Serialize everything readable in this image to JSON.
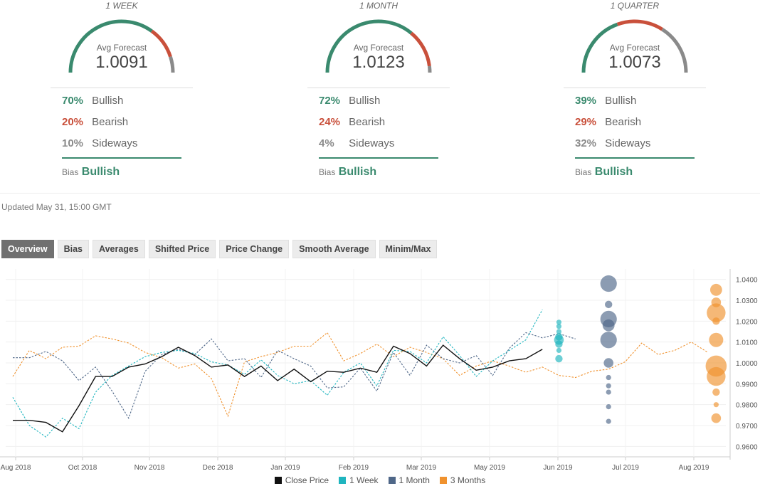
{
  "forecasts": [
    {
      "period": "1 WEEK",
      "avg_label": "Avg Forecast",
      "avg": "1.0091",
      "bullish_pct": "70%",
      "bullish_label": "Bullish",
      "bearish_pct": "20%",
      "bearish_label": "Bearish",
      "sideways_pct": "10%",
      "sideways_label": "Sideways",
      "bias_label": "Bias",
      "bias": "Bullish",
      "bull": 70,
      "bear": 20,
      "side": 10
    },
    {
      "period": "1 MONTH",
      "avg_label": "Avg Forecast",
      "avg": "1.0123",
      "bullish_pct": "72%",
      "bullish_label": "Bullish",
      "bearish_pct": "24%",
      "bearish_label": "Bearish",
      "sideways_pct": "4%",
      "sideways_label": "Sideways",
      "bias_label": "Bias",
      "bias": "Bullish",
      "bull": 72,
      "bear": 24,
      "side": 4
    },
    {
      "period": "1 QUARTER",
      "avg_label": "Avg Forecast",
      "avg": "1.0073",
      "bullish_pct": "39%",
      "bullish_label": "Bullish",
      "bearish_pct": "29%",
      "bearish_label": "Bearish",
      "sideways_pct": "32%",
      "sideways_label": "Sideways",
      "bias_label": "Bias",
      "bias": "Bullish",
      "bull": 39,
      "bear": 29,
      "side": 32
    }
  ],
  "updated": "Updated May 31, 15:00 GMT",
  "tabs": [
    {
      "label": "Overview",
      "active": true
    },
    {
      "label": "Bias",
      "active": false
    },
    {
      "label": "Averages",
      "active": false
    },
    {
      "label": "Shifted Price",
      "active": false
    },
    {
      "label": "Price Change",
      "active": false
    },
    {
      "label": "Smooth Average",
      "active": false
    },
    {
      "label": "Minim/Max",
      "active": false
    }
  ],
  "colors": {
    "bullish": "#3a8a6e",
    "bearish": "#c9503b",
    "sideways": "#8a8a8a",
    "close": "#111111",
    "week": "#1fb5bf",
    "month": "#4f6788",
    "quarter": "#f0922e"
  },
  "chart_data": {
    "type": "line",
    "x_ticks": [
      "Aug 2018",
      "Oct 2018",
      "Nov 2018",
      "Dec 2018",
      "Jan 2019",
      "Feb 2019",
      "Mar 2019",
      "May 2019",
      "Jun 2019",
      "Jul 2019",
      "Aug 2019"
    ],
    "y_ticks": [
      "1.0400",
      "1.0300",
      "1.0200",
      "1.0100",
      "1.0000",
      "0.9900",
      "0.9800",
      "0.9700",
      "0.9600"
    ],
    "ylim": [
      0.955,
      1.045
    ],
    "xlim": [
      0,
      43
    ],
    "grid": true,
    "legend_position": "bottom",
    "series": [
      {
        "name": "Close Price",
        "style": "solid",
        "x": [
          0,
          1,
          2,
          3,
          4,
          5,
          6,
          7,
          8,
          9,
          10,
          11,
          12,
          13,
          14,
          15,
          16,
          17,
          18,
          19,
          20,
          21,
          22,
          23,
          24,
          25,
          26,
          27,
          28,
          29,
          30,
          31,
          32
        ],
        "y": [
          0.9725,
          0.9725,
          0.9715,
          0.967,
          0.9795,
          0.9935,
          0.9935,
          0.998,
          0.9995,
          1.003,
          1.0075,
          1.0035,
          0.998,
          0.999,
          0.9935,
          0.9985,
          0.9915,
          0.997,
          0.991,
          0.996,
          0.9955,
          0.9975,
          0.9955,
          1.008,
          1.0045,
          0.9985,
          1.0085,
          1.002,
          0.9965,
          0.998,
          1.001,
          1.002,
          1.0065
        ]
      },
      {
        "name": "1 Week",
        "style": "dotted",
        "x": [
          0,
          1,
          2,
          3,
          4,
          5,
          6,
          7,
          8,
          9,
          10,
          11,
          12,
          13,
          14,
          15,
          16,
          17,
          18,
          19,
          20,
          21,
          22,
          23,
          24,
          25,
          26,
          27,
          28,
          29,
          30,
          31,
          32
        ],
        "y": [
          0.9835,
          0.97,
          0.9645,
          0.9735,
          0.9685,
          0.986,
          0.994,
          0.9985,
          1.003,
          1.005,
          1.006,
          1.0045,
          1.0005,
          0.999,
          0.9945,
          1.0015,
          0.994,
          0.99,
          0.9915,
          0.9845,
          0.9955,
          1.0,
          0.989,
          1.006,
          1.0055,
          1.0,
          1.0125,
          1.0035,
          0.9935,
          1.001,
          1.006,
          1.011,
          1.0255
        ]
      },
      {
        "name": "1 Month",
        "style": "dotted",
        "x": [
          0,
          1,
          2,
          3,
          4,
          5,
          6,
          7,
          8,
          9,
          10,
          11,
          12,
          13,
          14,
          15,
          16,
          17,
          18,
          19,
          20,
          21,
          22,
          23,
          24,
          25,
          26,
          27,
          28,
          29,
          30,
          31,
          32,
          33,
          34
        ],
        "y": [
          1.0025,
          1.0025,
          1.0055,
          1.001,
          0.9915,
          0.998,
          0.9865,
          0.9735,
          0.996,
          1.004,
          1.0065,
          1.004,
          1.0115,
          1.001,
          1.002,
          0.993,
          1.006,
          1.002,
          0.9985,
          0.988,
          0.9885,
          0.9975,
          0.9865,
          1.005,
          0.994,
          1.0085,
          1.002,
          1.0,
          1.0035,
          0.994,
          1.007,
          1.0145,
          1.012,
          1.014,
          1.0115
        ]
      },
      {
        "name": "3 Months",
        "style": "dotted",
        "x": [
          0,
          1,
          2,
          3,
          4,
          5,
          6,
          7,
          8,
          9,
          10,
          11,
          12,
          13,
          14,
          15,
          16,
          17,
          18,
          19,
          20,
          21,
          22,
          23,
          24,
          25,
          26,
          27,
          28,
          29,
          30,
          31,
          32,
          33,
          34,
          35,
          36,
          37,
          38,
          39,
          40,
          41,
          42
        ],
        "y": [
          0.9935,
          1.006,
          1.002,
          1.0075,
          1.008,
          1.013,
          1.0115,
          1.0095,
          1.005,
          1.0025,
          0.9975,
          0.9995,
          0.9925,
          0.9745,
          1.0005,
          1.003,
          1.005,
          1.008,
          1.008,
          1.0145,
          1.001,
          1.0045,
          1.009,
          1.003,
          1.0075,
          1.005,
          1.002,
          0.994,
          0.9985,
          1.001,
          0.9985,
          0.9955,
          0.998,
          0.994,
          0.993,
          0.996,
          0.997,
          1.0005,
          1.0095,
          1.004,
          1.006,
          1.01,
          1.005
        ]
      }
    ],
    "distributions": [
      {
        "name": "1 Week",
        "x": 33,
        "points": [
          {
            "y": 1.0195,
            "size": 1
          },
          {
            "y": 1.0175,
            "size": 1
          },
          {
            "y": 1.015,
            "size": 1
          },
          {
            "y": 1.0125,
            "size": 2
          },
          {
            "y": 1.011,
            "size": 3
          },
          {
            "y": 1.009,
            "size": 2
          },
          {
            "y": 1.006,
            "size": 1
          },
          {
            "y": 1.002,
            "size": 2
          }
        ]
      },
      {
        "name": "1 Month",
        "x": 36,
        "points": [
          {
            "y": 1.038,
            "size": 6
          },
          {
            "y": 1.028,
            "size": 2
          },
          {
            "y": 1.021,
            "size": 6
          },
          {
            "y": 1.018,
            "size": 4
          },
          {
            "y": 1.011,
            "size": 6
          },
          {
            "y": 1.0,
            "size": 3
          },
          {
            "y": 0.993,
            "size": 1
          },
          {
            "y": 0.989,
            "size": 1
          },
          {
            "y": 0.986,
            "size": 1
          },
          {
            "y": 0.979,
            "size": 1
          },
          {
            "y": 0.972,
            "size": 1
          }
        ]
      },
      {
        "name": "3 Months",
        "x": 42.5,
        "points": [
          {
            "y": 1.035,
            "size": 4
          },
          {
            "y": 1.029,
            "size": 3
          },
          {
            "y": 1.024,
            "size": 7
          },
          {
            "y": 1.02,
            "size": 2
          },
          {
            "y": 1.011,
            "size": 5
          },
          {
            "y": 0.9985,
            "size": 8
          },
          {
            "y": 0.9935,
            "size": 7
          },
          {
            "y": 0.986,
            "size": 2
          },
          {
            "y": 0.98,
            "size": 1
          },
          {
            "y": 0.9735,
            "size": 3
          }
        ]
      }
    ]
  }
}
